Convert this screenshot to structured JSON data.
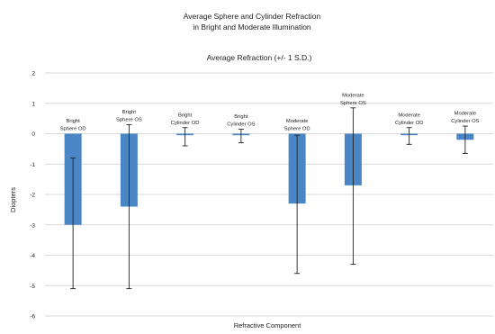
{
  "chart_data": {
    "type": "bar",
    "title": "Average Sphere and Cylinder Refraction",
    "subtitle": "in Bright and Moderate Illumination",
    "inner_title": "Average Refraction (+/- 1 S.D.)",
    "xlabel": "Refractive Component",
    "ylabel": "Diopters",
    "ylim": [
      -6,
      2
    ],
    "yticks": [
      "2",
      "1",
      "0",
      "-1",
      "-2",
      "-3",
      "-4",
      "-5",
      "-6"
    ],
    "grid": true,
    "categories": [
      [
        "Bright",
        "Sphere OD"
      ],
      [
        "Bright",
        "Sphere OS"
      ],
      [
        "Bright",
        "Cylinder OD"
      ],
      [
        "Bright",
        "Cylinder OS"
      ],
      [
        "Moderate",
        "Sphere OD"
      ],
      [
        "Moderate",
        "Sphere OS"
      ],
      [
        "Moderate",
        "Cylinder OD"
      ],
      [
        "Moderate",
        "Cylinder OS"
      ]
    ],
    "values": [
      -3.0,
      -2.4,
      -0.05,
      -0.05,
      -2.3,
      -1.7,
      -0.05,
      -0.2
    ],
    "error_low": [
      -5.1,
      -5.1,
      -0.4,
      -0.3,
      -4.6,
      -4.3,
      -0.35,
      -0.65
    ],
    "error_high": [
      -0.8,
      0.3,
      0.2,
      0.15,
      -0.05,
      0.85,
      0.2,
      0.25
    ],
    "bar_color": "#4a86c6",
    "error_color": "#222222",
    "grid_color": "#d9d9d9"
  }
}
